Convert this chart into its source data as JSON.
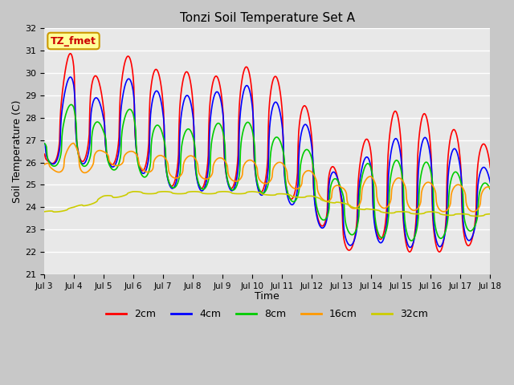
{
  "title": "Tonzi Soil Temperature Set A",
  "xlabel": "Time",
  "ylabel": "Soil Temperature (C)",
  "annotation": "TZ_fmet",
  "ylim": [
    21.0,
    32.0
  ],
  "yticks": [
    21.0,
    22.0,
    23.0,
    24.0,
    25.0,
    26.0,
    27.0,
    28.0,
    29.0,
    30.0,
    31.0,
    32.0
  ],
  "xtick_labels": [
    "Jul 3",
    "Jul 4",
    "Jul 5",
    "Jul 6",
    "Jul 7",
    "Jul 8",
    "Jul 9",
    "Jul 10",
    "Jul 11",
    "Jul 12",
    "Jul 13",
    "Jul 14",
    "Jul 15",
    "Jul 16",
    "Jul 17",
    "Jul 18"
  ],
  "series_colors": [
    "#ff0000",
    "#0000ff",
    "#00cc00",
    "#ff9900",
    "#cccc00"
  ],
  "series_labels": [
    "2cm",
    "4cm",
    "8cm",
    "16cm",
    "32cm"
  ],
  "linewidth": 1.2,
  "fig_bg_color": "#c8c8c8",
  "plot_bg_color": "#e8e8e8",
  "grid_color": "#ffffff",
  "legend_box_facecolor": "#ffff99",
  "legend_box_edgecolor": "#cc9900",
  "annotation_text_color": "#cc0000"
}
